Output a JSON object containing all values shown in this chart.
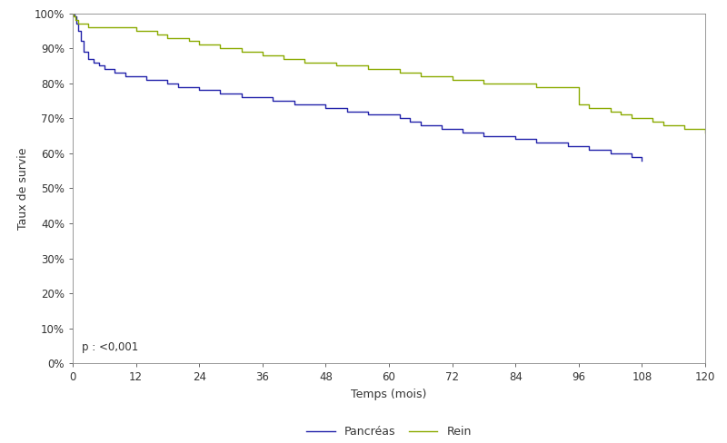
{
  "pancreas_x": [
    0,
    0.3,
    0.7,
    1,
    1.5,
    2,
    3,
    4,
    5,
    6,
    7,
    8,
    9,
    10,
    11,
    12,
    14,
    16,
    18,
    20,
    22,
    24,
    26,
    28,
    30,
    32,
    34,
    36,
    38,
    40,
    42,
    44,
    46,
    48,
    50,
    52,
    54,
    56,
    58,
    60,
    62,
    64,
    66,
    68,
    70,
    72,
    74,
    76,
    78,
    80,
    82,
    84,
    86,
    88,
    90,
    92,
    94,
    96,
    98,
    100,
    102,
    104,
    106,
    108
  ],
  "pancreas_y": [
    1.0,
    0.99,
    0.97,
    0.95,
    0.92,
    0.89,
    0.87,
    0.86,
    0.85,
    0.84,
    0.84,
    0.83,
    0.83,
    0.82,
    0.82,
    0.82,
    0.81,
    0.81,
    0.8,
    0.79,
    0.79,
    0.78,
    0.78,
    0.77,
    0.77,
    0.76,
    0.76,
    0.76,
    0.75,
    0.75,
    0.74,
    0.74,
    0.74,
    0.73,
    0.73,
    0.72,
    0.72,
    0.71,
    0.71,
    0.71,
    0.7,
    0.69,
    0.68,
    0.68,
    0.67,
    0.67,
    0.66,
    0.66,
    0.65,
    0.65,
    0.65,
    0.64,
    0.64,
    0.63,
    0.63,
    0.63,
    0.62,
    0.62,
    0.61,
    0.61,
    0.6,
    0.6,
    0.59,
    0.58
  ],
  "rein_x": [
    0,
    0.2,
    0.5,
    1,
    1.5,
    2,
    3,
    4,
    5,
    6,
    7,
    8,
    9,
    10,
    11,
    12,
    14,
    16,
    18,
    20,
    22,
    24,
    26,
    28,
    30,
    32,
    34,
    36,
    38,
    40,
    42,
    44,
    46,
    48,
    50,
    52,
    54,
    56,
    58,
    60,
    62,
    64,
    66,
    68,
    70,
    72,
    74,
    76,
    78,
    80,
    82,
    84,
    86,
    88,
    90,
    92,
    94,
    96,
    98,
    100,
    102,
    104,
    106,
    108,
    110,
    112,
    114,
    116,
    118,
    120
  ],
  "rein_y": [
    1.0,
    0.99,
    0.98,
    0.97,
    0.97,
    0.97,
    0.96,
    0.96,
    0.96,
    0.96,
    0.96,
    0.96,
    0.96,
    0.96,
    0.96,
    0.95,
    0.95,
    0.94,
    0.93,
    0.93,
    0.92,
    0.91,
    0.91,
    0.9,
    0.9,
    0.89,
    0.89,
    0.88,
    0.88,
    0.87,
    0.87,
    0.86,
    0.86,
    0.86,
    0.85,
    0.85,
    0.85,
    0.84,
    0.84,
    0.84,
    0.83,
    0.83,
    0.82,
    0.82,
    0.82,
    0.81,
    0.81,
    0.81,
    0.8,
    0.8,
    0.8,
    0.8,
    0.8,
    0.79,
    0.79,
    0.79,
    0.79,
    0.74,
    0.73,
    0.73,
    0.72,
    0.71,
    0.7,
    0.7,
    0.69,
    0.68,
    0.68,
    0.67,
    0.67,
    0.66
  ],
  "pancreas_color": "#2222aa",
  "rein_color": "#8aaa00",
  "xlabel": "Temps (mois)",
  "ylabel": "Taux de survie",
  "pvalue_text": "p : <0,001",
  "legend_pancreas": "Pancréas",
  "legend_rein": "Rein",
  "xlim": [
    0,
    120
  ],
  "ylim": [
    0,
    1.0
  ],
  "xticks": [
    0,
    12,
    24,
    36,
    48,
    60,
    72,
    84,
    96,
    108,
    120
  ],
  "yticks": [
    0.0,
    0.1,
    0.2,
    0.3,
    0.4,
    0.5,
    0.6,
    0.7,
    0.8,
    0.9,
    1.0
  ],
  "line_width": 1.0,
  "background_color": "#ffffff",
  "figsize": [
    8.0,
    4.88
  ],
  "dpi": 100
}
